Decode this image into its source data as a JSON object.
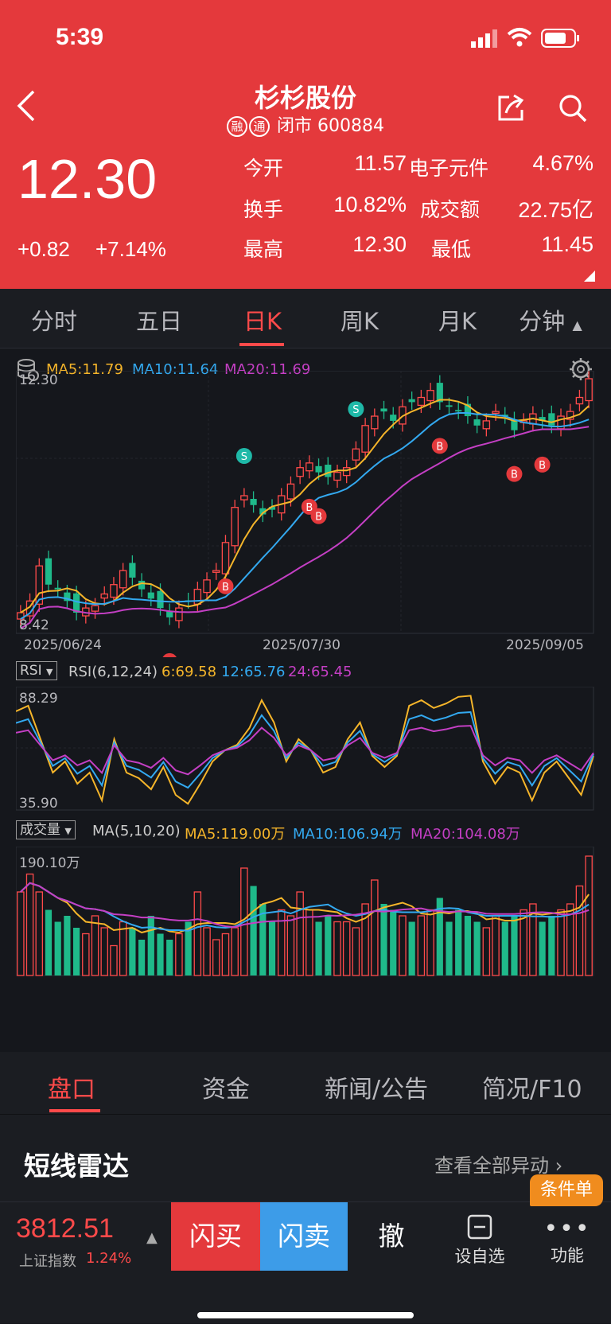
{
  "status": {
    "time": "5:39"
  },
  "header": {
    "title": "杉杉股份",
    "badge1": "融",
    "badge2": "通",
    "status_text": "闭市",
    "code": "600884",
    "price": "12.30",
    "change": "+0.82",
    "change_pct": "+7.14%",
    "stats": {
      "open_label": "今开",
      "open_value": "11.57",
      "sector_label": "电子元件",
      "sector_value": "4.67%",
      "turnover_label": "换手",
      "turnover_value": "10.82%",
      "amount_label": "成交额",
      "amount_value": "22.75亿",
      "high_label": "最高",
      "high_value": "12.30",
      "low_label": "最低",
      "low_value": "11.45"
    }
  },
  "period_tabs": [
    "分时",
    "五日",
    "日K",
    "周K",
    "月K",
    "分钟"
  ],
  "active_tab": "日K",
  "kline": {
    "ma_legend": {
      "ma5": "MA5:11.79",
      "ma10": "MA10:11.64",
      "ma20": "MA20:11.69"
    },
    "y_high": "12.30",
    "y_low": "8.42",
    "dates": [
      "2025/06/24",
      "2025/07/30",
      "2025/09/05"
    ]
  },
  "rsi": {
    "selector": "RSI",
    "params": "RSI(6,12,24)",
    "rsi6": "6:69.58",
    "rsi12": "12:65.76",
    "rsi24": "24:65.45",
    "y_high": "88.29",
    "y_low": "35.90"
  },
  "volume": {
    "selector": "成交量",
    "params": "MA(5,10,20)",
    "ma5": "MA5:119.00万",
    "ma10": "MA10:106.94万",
    "ma20": "MA20:104.08万",
    "y_high": "190.10万"
  },
  "bottom_tabs": [
    "盘口",
    "资金",
    "新闻/公告",
    "简况/F10"
  ],
  "active_bottom_tab": "盘口",
  "radar": {
    "title": "短线雷达",
    "link": "查看全部异动"
  },
  "toolbar": {
    "index_value": "3812.51",
    "index_name": "上证指数",
    "index_pct": "1.24%",
    "buy": "闪买",
    "sell": "闪卖",
    "cancel": "撤",
    "watchlist": "设自选",
    "more": "功能",
    "condition_order": "条件单"
  },
  "colors": {
    "up": "#ff4a4a",
    "down": "#1fb98a",
    "ma5": "#f5b52a",
    "ma10": "#33a9f0",
    "ma20": "#c43fc4",
    "header": "#e4393c"
  },
  "chart_data": {
    "type": "candlestick",
    "title": "",
    "xlabel": "",
    "ylabel": "",
    "ylim": [
      8.42,
      12.3
    ],
    "x_labels": [
      "2025/06/24",
      "2025/07/30",
      "2025/09/05"
    ],
    "last_close": 12.3,
    "ma_last": {
      "MA5": 11.79,
      "MA10": 11.64,
      "MA20": 11.69
    },
    "rsi_last": {
      "RSI6": 69.58,
      "RSI12": 65.76,
      "RSI24": 65.45
    },
    "rsi_ylim": [
      35.9,
      88.29
    ],
    "volume_ylim_wan": [
      0,
      190.1
    ],
    "volume_ma_last_wan": {
      "MA5": 119.0,
      "MA10": 106.94,
      "MA20": 104.08
    }
  }
}
